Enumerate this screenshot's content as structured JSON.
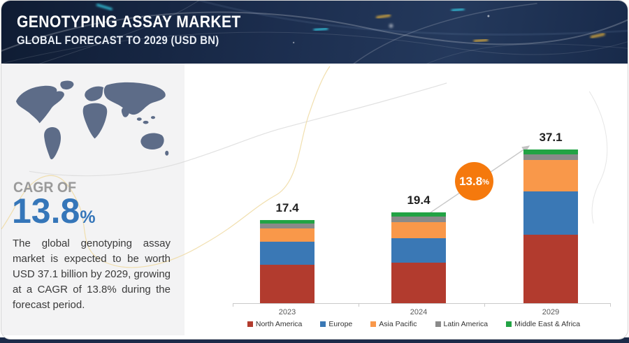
{
  "header": {
    "title": "GENOTYPING ASSAY MARKET",
    "subtitle": "GLOBAL FORECAST TO 2029 (USD BN)"
  },
  "sidebar": {
    "cagr_label": "CAGR OF",
    "cagr_value": "13.8",
    "cagr_suffix": "%",
    "description": "The global genotyping assay market is expected to be worth USD 37.1 billion by 2029, growing at a CAGR of 13.8% during the forecast period.",
    "cagr_color": "#3576b9",
    "map_color": "#5d6c88"
  },
  "chart_data": {
    "type": "bar",
    "stacked": true,
    "unit": "USD BN",
    "categories": [
      "2023",
      "2024",
      "2029"
    ],
    "series": [
      {
        "name": "North America",
        "color": "#b23b2e",
        "values": [
          8.0,
          8.7,
          16.5
        ]
      },
      {
        "name": "Europe",
        "color": "#3a78b5",
        "values": [
          4.8,
          5.2,
          10.5
        ]
      },
      {
        "name": "Asia Pacific",
        "color": "#f9984a",
        "values": [
          2.8,
          3.4,
          7.6
        ]
      },
      {
        "name": "Latin America",
        "color": "#8a8a8a",
        "values": [
          1.0,
          1.2,
          1.3
        ]
      },
      {
        "name": "Middle East & Africa",
        "color": "#22a344",
        "values": [
          0.8,
          0.9,
          1.2
        ]
      }
    ],
    "totals": [
      17.4,
      19.4,
      37.1
    ],
    "total_labels": [
      "17.4",
      "19.4",
      "37.1"
    ],
    "growth_badge": {
      "value": "13.8",
      "suffix": "%",
      "color": "#f5790d"
    },
    "legend_position": "bottom",
    "gridlines": false,
    "ylim": [
      0,
      40
    ]
  }
}
